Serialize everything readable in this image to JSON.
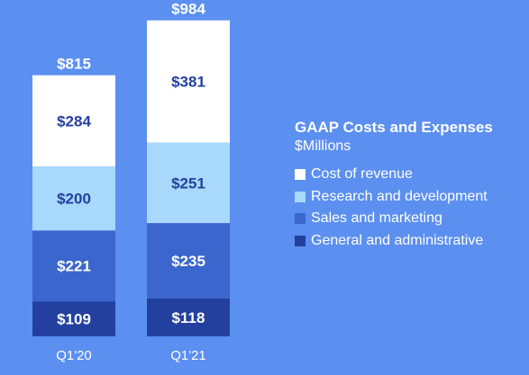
{
  "chart_data": {
    "type": "bar",
    "stacked": true,
    "title": "GAAP Costs and Expenses",
    "subtitle": "$Millions",
    "categories": [
      "Q1'20",
      "Q1'21"
    ],
    "totals": [
      "$815",
      "$984"
    ],
    "series": [
      {
        "name": "General and administrative",
        "values": [
          109,
          118
        ],
        "labels": [
          "$109",
          "$118"
        ],
        "color": "#24409f",
        "label_color": "#ffffff"
      },
      {
        "name": "Sales and marketing",
        "values": [
          221,
          235
        ],
        "labels": [
          "$221",
          "$235"
        ],
        "color": "#3b66cd",
        "label_color": "#ffffff"
      },
      {
        "name": "Research and development",
        "values": [
          200,
          251
        ],
        "labels": [
          "$200",
          "$251"
        ],
        "color": "#a8d8fb",
        "label_color": "#24409f"
      },
      {
        "name": "Cost of revenue",
        "values": [
          284,
          381
        ],
        "labels": [
          "$284",
          "$381"
        ],
        "color": "#ffffff",
        "label_color": "#24409f"
      }
    ],
    "legend_order": [
      "Cost of revenue",
      "Research and development",
      "Sales and marketing",
      "General and administrative"
    ],
    "legend_position": "right",
    "grid": false,
    "ylim": [
      0,
      984
    ]
  },
  "colors": {
    "background": "#5b8ff0",
    "text": "#ffffff"
  }
}
